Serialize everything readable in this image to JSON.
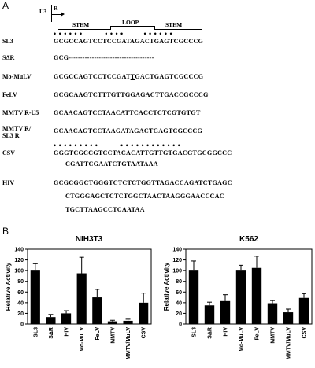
{
  "panelA": {
    "letter": "A",
    "u3": "U3",
    "r": "R",
    "stem1": "STEM",
    "loop": "LOOP",
    "stem2": "STEM",
    "top_dots": "• • • • • •          • • • •         • • • • • •",
    "rows": [
      {
        "name": "SL3",
        "seq": "GCGCCAGTCCTCCGATAGACTGAGTCGCCCG"
      },
      {
        "name": "SΔR",
        "seq": "GCG-------------------------------------"
      },
      {
        "name": "Mo-MuLV",
        "segments": [
          {
            "t": "GCGCCAGTCCTCCGAT"
          },
          {
            "t": "T",
            "u": true
          },
          {
            "t": "GACTGAGTCGCCCG"
          }
        ]
      },
      {
        "name": "FeLV",
        "segments": [
          {
            "t": "GCGC"
          },
          {
            "t": "AAG",
            "u": true
          },
          {
            "t": "TC"
          },
          {
            "t": "TTTGTTG",
            "u": true
          },
          {
            "t": "GAGAC"
          },
          {
            "t": "TTGACC",
            "u": true
          },
          {
            "t": "GCCCG"
          }
        ]
      },
      {
        "name": "MMTV R-U5",
        "segments": [
          {
            "t": "GC"
          },
          {
            "t": "AA",
            "u": true
          },
          {
            "t": "CAGTCCT"
          },
          {
            "t": "AACATTCACCTCTCGTGTGT",
            "u": true
          }
        ]
      },
      {
        "name1": "MMTV R/",
        "name2": "SL3 R",
        "segments": [
          {
            "t": "GC"
          },
          {
            "t": "AA",
            "u": true
          },
          {
            "t": "CAGTCCT"
          },
          {
            "t": "A",
            "u": true
          },
          {
            "t": "AGATAGACTGAGTCGCCCG"
          }
        ]
      },
      {
        "csv_dots": "• • • • • • • • •          • • • • • • • • • • • •"
      },
      {
        "name": "CSV",
        "seq": "GGGTCGCCGTCCTACACATTGTTGTGACGTGCGGCCC",
        "seq2": "CGATTCGAATCTGTAATAAA"
      },
      {
        "name": "HIV",
        "seq": "GCGCGGCTGGGTCTCTCTGGTTAGACCAGATCTGAGC",
        "seq2": "CTGGGAGCTCTCTGGCTAACTAAGGGAACCCAC",
        "seq3": "TGCTTAAGCCTCAATAA"
      }
    ]
  },
  "panelB": {
    "letter": "B",
    "colors": {
      "bar": "#000000",
      "axis": "#000000"
    },
    "chart_data": [
      {
        "type": "bar",
        "title": "NIH3T3",
        "ylabel": "Relative Activity",
        "ylim": [
          0,
          140
        ],
        "yticks": [
          0,
          20,
          40,
          60,
          80,
          100,
          120,
          140
        ],
        "categories": [
          "SL3",
          "SΔR",
          "HIV",
          "Mo-MuLV",
          "FeLV",
          "MMTV",
          "MMTV/MuLV",
          "CSV"
        ],
        "values": [
          100,
          13,
          20,
          95,
          50,
          5,
          6,
          40
        ],
        "errors": [
          13,
          5,
          5,
          30,
          15,
          2,
          3,
          18
        ]
      },
      {
        "type": "bar",
        "title": "K562",
        "ylabel": "Relative Activity",
        "ylim": [
          0,
          140
        ],
        "yticks": [
          0,
          20,
          40,
          60,
          80,
          100,
          120,
          140
        ],
        "categories": [
          "SL3",
          "SΔR",
          "HIV",
          "Mo-MuLV",
          "FeLV",
          "MMTV",
          "MMTV/MuLV",
          "CSV"
        ],
        "values": [
          100,
          35,
          43,
          100,
          105,
          39,
          22,
          49
        ],
        "errors": [
          18,
          6,
          12,
          10,
          22,
          5,
          6,
          8
        ]
      }
    ]
  }
}
